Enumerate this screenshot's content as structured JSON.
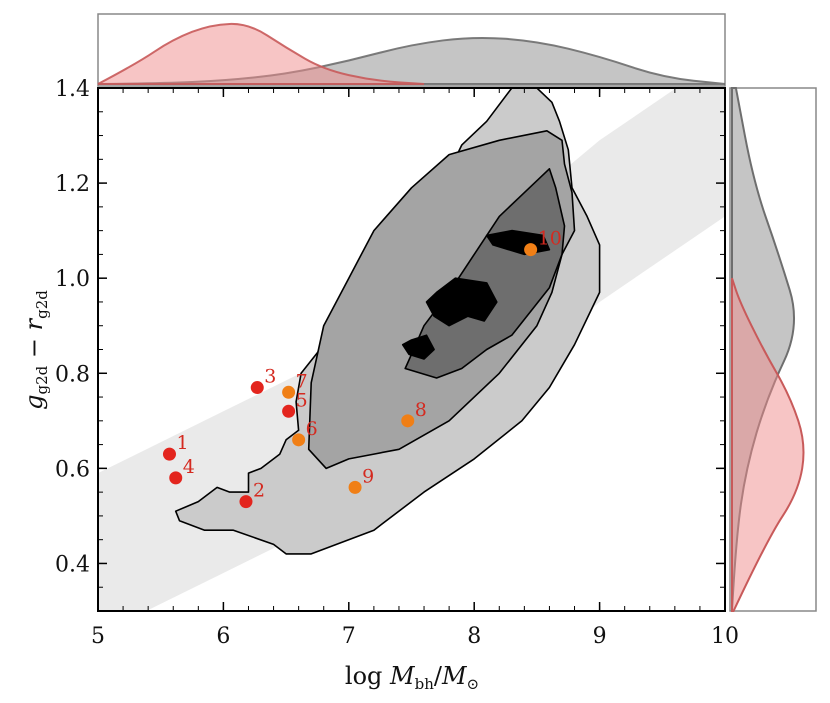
{
  "chart_data": {
    "type": "scatter",
    "xlabel_parts": {
      "prefix": "log ",
      "m1": "M",
      "sub1": "bh",
      "slash": "/",
      "m2": "M",
      "sub2": "⊙"
    },
    "ylabel_parts": {
      "g": "g",
      "gsub": "g2d",
      "minus": " − ",
      "r": "r",
      "rsub": "g2d"
    },
    "xlim": [
      5,
      10
    ],
    "ylim": [
      0.3,
      1.4
    ],
    "x_ticks": [
      5,
      6,
      7,
      8,
      9,
      10
    ],
    "x_tick_labels": [
      "5",
      "6",
      "7",
      "8",
      "9",
      "10"
    ],
    "y_ticks": [
      0.4,
      0.6,
      0.8,
      1.0,
      1.2,
      1.4
    ],
    "y_tick_labels": [
      "0.4",
      "0.6",
      "0.8",
      "1.0",
      "1.2",
      "1.4"
    ],
    "background_density": {
      "description_visible": false,
      "ridge": [
        [
          5.0,
          0.42
        ],
        [
          6.0,
          0.55
        ],
        [
          7.0,
          0.68
        ],
        [
          8.0,
          0.9
        ],
        [
          9.0,
          1.12
        ],
        [
          10.0,
          1.3
        ]
      ]
    },
    "contours": [
      {
        "level": 1,
        "fill": "#cbcbcb",
        "x": [
          8.3,
          8.1,
          7.9,
          7.72,
          7.52,
          7.42,
          7.2,
          7.0,
          6.8,
          6.62,
          6.58,
          6.6,
          6.5,
          6.45,
          6.3,
          6.2,
          6.2,
          6.05,
          5.95,
          5.8,
          5.62,
          5.65,
          5.85,
          6.08,
          6.4,
          6.5,
          6.7,
          7.2,
          7.6,
          8.0,
          8.38,
          8.6,
          8.8,
          9.0,
          9.0,
          8.9,
          8.78,
          8.75,
          8.68,
          8.62,
          8.5
        ],
        "y": [
          1.4,
          1.33,
          1.28,
          1.18,
          1.12,
          1.05,
          0.98,
          0.92,
          0.86,
          0.8,
          0.74,
          0.68,
          0.66,
          0.63,
          0.6,
          0.59,
          0.55,
          0.55,
          0.56,
          0.53,
          0.51,
          0.49,
          0.47,
          0.47,
          0.44,
          0.42,
          0.42,
          0.47,
          0.55,
          0.62,
          0.7,
          0.77,
          0.86,
          0.97,
          1.07,
          1.13,
          1.19,
          1.27,
          1.33,
          1.37,
          1.4
        ]
      },
      {
        "level": 2,
        "fill": "#a4a4a4",
        "x": [
          8.58,
          8.2,
          7.8,
          7.5,
          7.2,
          7.0,
          6.8,
          6.7,
          6.68,
          6.82,
          7.0,
          7.2,
          7.4,
          7.8,
          8.2,
          8.5,
          8.62,
          8.7,
          8.8,
          8.78,
          8.72,
          8.7
        ],
        "y": [
          1.31,
          1.29,
          1.26,
          1.19,
          1.1,
          1.0,
          0.9,
          0.78,
          0.64,
          0.6,
          0.62,
          0.63,
          0.64,
          0.7,
          0.8,
          0.9,
          0.97,
          1.05,
          1.1,
          1.18,
          1.24,
          1.29
        ]
      },
      {
        "level": 3,
        "fill": "#6e6e6e",
        "x": [
          8.6,
          8.4,
          8.2,
          8.0,
          7.8,
          7.6,
          7.5,
          7.45,
          7.7,
          7.9,
          8.1,
          8.3,
          8.6,
          8.7,
          8.72,
          8.65
        ],
        "y": [
          1.23,
          1.18,
          1.13,
          1.05,
          0.97,
          0.9,
          0.84,
          0.81,
          0.79,
          0.81,
          0.85,
          0.88,
          0.98,
          1.05,
          1.11,
          1.19
        ]
      },
      {
        "level": 4,
        "fill": "#000000",
        "x": [
          7.7,
          7.85,
          8.1,
          8.18,
          8.08,
          7.95,
          7.8,
          7.68,
          7.62
        ],
        "y": [
          0.97,
          1.0,
          0.99,
          0.95,
          0.91,
          0.92,
          0.9,
          0.92,
          0.95
        ]
      },
      {
        "level": 4,
        "fill": "#000000",
        "x": [
          8.1,
          8.3,
          8.55,
          8.6,
          8.4,
          8.15
        ],
        "y": [
          1.09,
          1.1,
          1.09,
          1.06,
          1.05,
          1.07
        ]
      },
      {
        "level": 4,
        "fill": "#000000",
        "x": [
          7.5,
          7.62,
          7.68,
          7.6,
          7.48,
          7.43
        ],
        "y": [
          0.87,
          0.88,
          0.85,
          0.83,
          0.84,
          0.86
        ]
      }
    ],
    "points": [
      {
        "label": "1",
        "x": 5.57,
        "y": 0.63,
        "color": "#e3251e"
      },
      {
        "label": "2",
        "x": 6.18,
        "y": 0.53,
        "color": "#e3251e"
      },
      {
        "label": "3",
        "x": 6.27,
        "y": 0.77,
        "color": "#e3251e"
      },
      {
        "label": "4",
        "x": 5.62,
        "y": 0.58,
        "color": "#e3251e"
      },
      {
        "label": "5",
        "x": 6.52,
        "y": 0.72,
        "color": "#e3251e"
      },
      {
        "label": "6",
        "x": 6.6,
        "y": 0.66,
        "color": "#f07f16"
      },
      {
        "label": "7",
        "x": 6.52,
        "y": 0.76,
        "color": "#f07f16"
      },
      {
        "label": "8",
        "x": 7.47,
        "y": 0.7,
        "color": "#f07f16"
      },
      {
        "label": "9",
        "x": 7.05,
        "y": 0.56,
        "color": "#f07f16"
      },
      {
        "label": "10",
        "x": 8.45,
        "y": 1.06,
        "color": "#f07f16"
      }
    ],
    "marginal_top": {
      "gray": {
        "x": [
          5.0,
          5.5,
          6.0,
          6.5,
          7.0,
          7.5,
          8.0,
          8.5,
          9.0,
          9.5,
          10.0
        ],
        "density": [
          0.0,
          0.01,
          0.05,
          0.15,
          0.35,
          0.6,
          0.72,
          0.65,
          0.42,
          0.1,
          0.0
        ],
        "color": "#8c8c8c"
      },
      "red": {
        "x": [
          5.0,
          5.3,
          5.6,
          5.9,
          6.2,
          6.5,
          6.8,
          7.2,
          7.6
        ],
        "density": [
          0.0,
          0.3,
          0.68,
          0.9,
          0.92,
          0.55,
          0.22,
          0.05,
          0.0
        ],
        "color": "#f08b8b"
      }
    },
    "marginal_right": {
      "gray": {
        "y": [
          0.3,
          0.45,
          0.6,
          0.75,
          0.9,
          1.05,
          1.2,
          1.4
        ],
        "density": [
          0.0,
          0.05,
          0.18,
          0.45,
          0.88,
          0.6,
          0.28,
          0.05
        ],
        "color": "#8c8c8c"
      },
      "red": {
        "y": [
          0.3,
          0.45,
          0.55,
          0.65,
          0.75,
          0.85,
          0.95,
          1.0
        ],
        "density": [
          0.02,
          0.45,
          0.85,
          0.95,
          0.75,
          0.4,
          0.1,
          0.0
        ],
        "color": "#f08b8b"
      }
    }
  }
}
